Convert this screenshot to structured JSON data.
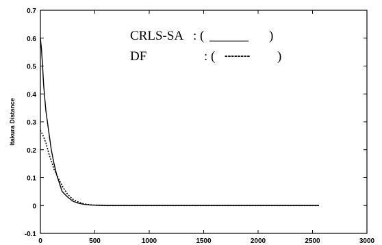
{
  "chart_data": {
    "type": "line",
    "title": "",
    "xlabel": "",
    "ylabel": "Itakura Distance",
    "xlim": [
      0,
      3000
    ],
    "ylim": [
      -0.1,
      0.7
    ],
    "grid": false,
    "legend_placement": "top-center",
    "xticks": [
      "0",
      "500",
      "1000",
      "1500",
      "2000",
      "2500",
      "3000"
    ],
    "yticks": [
      "-0.1",
      "0",
      "0.1",
      "0.2",
      "0.3",
      "0.4",
      "0.5",
      "0.6",
      "0.7"
    ],
    "legend": [
      {
        "name": "CRLS-SA",
        "sep": ": (",
        "sample": "______",
        "close": ")"
      },
      {
        "name": "DF",
        "sep": ": (",
        "sample": "--------",
        "close": ")"
      }
    ],
    "series": [
      {
        "name": "CRLS-SA",
        "style": "solid",
        "color": "#000000",
        "x": [
          0,
          10,
          20,
          30,
          50,
          75,
          100,
          125,
          150,
          175,
          200,
          250,
          300,
          350,
          400,
          450,
          500,
          600,
          1000,
          1500,
          2000,
          2560
        ],
        "y": [
          0.6,
          0.56,
          0.5,
          0.43,
          0.34,
          0.27,
          0.2,
          0.15,
          0.11,
          0.08,
          0.05,
          0.03,
          0.015,
          0.008,
          0.004,
          0.002,
          0.001,
          0.0,
          0.0,
          0.0,
          0.0,
          0.0
        ]
      },
      {
        "name": "DF",
        "style": "dotted",
        "color": "#000000",
        "x": [
          0,
          25,
          50,
          75,
          100,
          125,
          150,
          175,
          200,
          250,
          300,
          350,
          400,
          450,
          500,
          600,
          1000,
          1500,
          2000,
          2560
        ],
        "y": [
          0.27,
          0.25,
          0.225,
          0.19,
          0.16,
          0.13,
          0.11,
          0.09,
          0.07,
          0.04,
          0.022,
          0.012,
          0.006,
          0.003,
          0.001,
          0.0,
          0.0,
          0.0,
          0.0,
          0.0
        ]
      }
    ]
  }
}
